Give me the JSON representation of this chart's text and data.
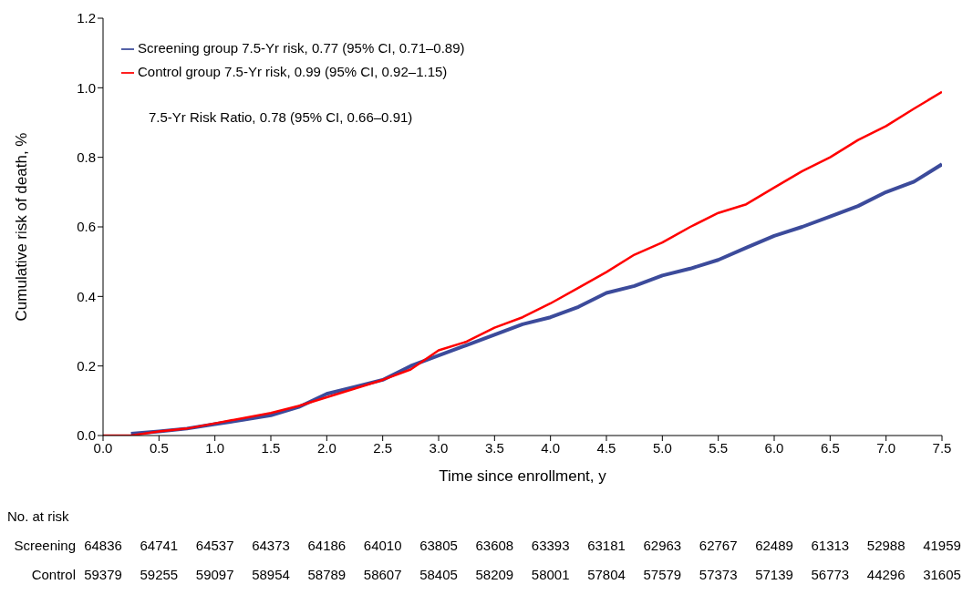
{
  "chart_data": {
    "type": "line",
    "xlabel": "Time since enrollment, y",
    "ylabel": "Cumulative risk of death, %",
    "xlim": [
      0,
      7.5
    ],
    "xticks": [
      {
        "value": 0,
        "label": "0.0"
      },
      {
        "value": 0.5,
        "label": "0.5"
      },
      {
        "value": 1,
        "label": "1.0"
      },
      {
        "value": 1.5,
        "label": "1.5"
      },
      {
        "value": 2,
        "label": "2.0"
      },
      {
        "value": 2.5,
        "label": "2.5"
      },
      {
        "value": 3,
        "label": "3.0"
      },
      {
        "value": 3.5,
        "label": "3.5"
      },
      {
        "value": 4,
        "label": "4.0"
      },
      {
        "value": 4.5,
        "label": "4.5"
      },
      {
        "value": 5,
        "label": "5.0"
      },
      {
        "value": 5.5,
        "label": "5.5"
      },
      {
        "value": 6,
        "label": "6.0"
      },
      {
        "value": 6.5,
        "label": "6.5"
      },
      {
        "value": 7,
        "label": "7.0"
      },
      {
        "value": 7.5,
        "label": "7.5"
      }
    ],
    "ylim": [
      0,
      1.2
    ],
    "yticks": [
      {
        "value": 0,
        "label": "0.0"
      },
      0.2,
      0.4,
      0.6,
      0.8,
      {
        "value": 1,
        "label": "1.0"
      },
      {
        "value": 1.2,
        "label": "1.2"
      }
    ],
    "x": [
      0,
      0.25,
      0.5,
      0.75,
      1,
      1.25,
      1.5,
      1.75,
      2,
      2.25,
      2.5,
      2.75,
      3,
      3.25,
      3.5,
      3.75,
      4,
      4.25,
      4.5,
      4.75,
      5,
      5.25,
      5.5,
      5.75,
      6,
      6.25,
      6.5,
      6.75,
      7,
      7.25,
      7.5
    ],
    "series": [
      {
        "name": "Screening group 7.5-Yr risk, 0.77 (95% CI, 0.71–0.89)",
        "color": "#3c4b9b",
        "values": [
          null,
          0.005,
          0.012,
          0.02,
          0.033,
          0.045,
          0.058,
          0.082,
          0.12,
          0.14,
          0.16,
          0.2,
          0.23,
          0.26,
          0.29,
          0.32,
          0.34,
          0.37,
          0.41,
          0.43,
          0.46,
          0.48,
          0.505,
          0.54,
          0.574,
          0.6,
          0.63,
          0.66,
          0.7,
          0.73,
          0.78
        ]
      },
      {
        "name": "Control group 7.5-Yr risk, 0.99 (95% CI, 0.92–1.15)",
        "color": "#ff0000",
        "values": [
          0,
          0,
          0.012,
          0.02,
          0.035,
          0.05,
          0.065,
          0.085,
          0.11,
          0.135,
          0.16,
          0.19,
          0.245,
          0.27,
          0.31,
          0.34,
          0.38,
          0.425,
          0.47,
          0.52,
          0.555,
          0.6,
          0.64,
          0.665,
          0.713,
          0.76,
          0.8,
          0.85,
          0.89,
          0.94,
          0.988
        ]
      }
    ],
    "legend": "top left",
    "grid": false,
    "marker": "none",
    "line_style": "solid",
    "annotations": [
      "7.5-Yr Risk Ratio, 0.78 (95% CI, 0.66–0.91)",
      "No. at risk",
      "Screening",
      "64836",
      "64741",
      "64537",
      "64373",
      "64186",
      "64010",
      "63805",
      "63608",
      "63393",
      "63181",
      "62963",
      "62767",
      "62489",
      "61313",
      "52988",
      "41959",
      "Control",
      "59379",
      "59255",
      "59097",
      "58954",
      "58789",
      "58607",
      "58405",
      "58209",
      "58001",
      "57804",
      "57579",
      "57373",
      "57139",
      "56773",
      "44296",
      "31605"
    ]
  }
}
